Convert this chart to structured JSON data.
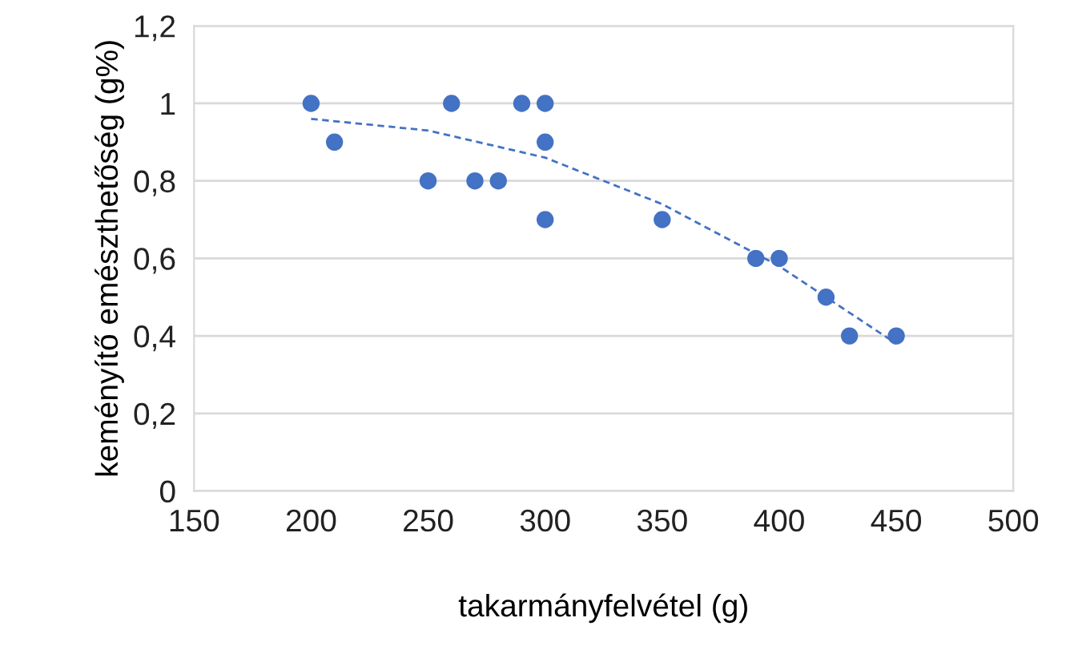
{
  "chart_data": {
    "type": "scatter",
    "xlabel": "takarmányfelvétel (g)",
    "ylabel": "keményítő emészthetőség (g%)",
    "xlim": [
      150,
      500
    ],
    "xticks": [
      150,
      200,
      250,
      300,
      350,
      400,
      450,
      500
    ],
    "ylim": [
      0,
      1.2
    ],
    "yticks": [
      0,
      {
        "value": 0.2,
        "label": "0,2"
      },
      {
        "value": 0.4,
        "label": "0,4"
      },
      {
        "value": 0.6,
        "label": "0,6"
      },
      {
        "value": 0.8,
        "label": "0,8"
      },
      1,
      {
        "value": 1.2,
        "label": "1,2"
      }
    ],
    "grid": "y",
    "legend": false,
    "series": [
      {
        "color": "#4472c4",
        "marker": "circle",
        "x": [
          200,
          210,
          250,
          260,
          270,
          280,
          290,
          300,
          300,
          300,
          350,
          390,
          400,
          420,
          430,
          450
        ],
        "values": [
          1.0,
          0.9,
          0.8,
          1.0,
          0.8,
          0.8,
          1.0,
          1.0,
          0.9,
          0.7,
          0.7,
          0.6,
          0.6,
          0.5,
          0.4,
          0.4
        ]
      },
      {
        "type": "line",
        "color": "#4472c4",
        "line_style": "dashed",
        "marker": "none",
        "x": [
          200,
          250,
          300,
          350,
          400,
          450
        ],
        "values": [
          0.96,
          0.93,
          0.86,
          0.74,
          0.58,
          0.38
        ]
      }
    ]
  }
}
